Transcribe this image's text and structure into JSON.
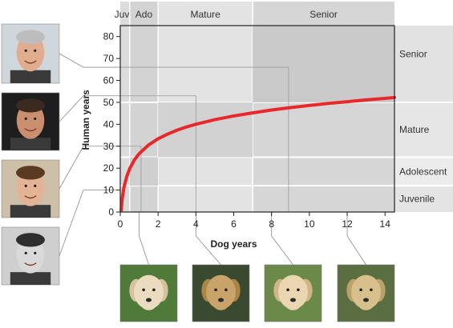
{
  "chart_data": {
    "type": "line",
    "xlabel": "Dog years",
    "ylabel": "Human years",
    "xlim": [
      0,
      14.5
    ],
    "ylim": [
      0,
      85
    ],
    "xticks": [
      0,
      2,
      4,
      6,
      8,
      10,
      12,
      14
    ],
    "yticks": [
      0,
      10,
      20,
      30,
      40,
      50,
      60,
      70,
      80
    ],
    "series": [
      {
        "color": "#e8282b",
        "x": [
          0.05,
          0.1,
          0.2,
          0.35,
          0.5,
          0.75,
          1,
          1.5,
          2,
          2.5,
          3,
          3.5,
          4,
          5,
          6,
          7,
          8,
          9,
          10,
          11,
          12,
          13,
          14,
          14.5
        ],
        "y": [
          0.9,
          6.0,
          11.5,
          16.4,
          19.8,
          23.8,
          26.6,
          30.6,
          33.4,
          35.5,
          37.3,
          38.8,
          40.0,
          42.1,
          43.8,
          45.2,
          46.5,
          47.6,
          48.6,
          49.5,
          50.3,
          51.1,
          51.8,
          52.2
        ]
      }
    ],
    "life_stages_dog": [
      {
        "label": "Juv",
        "from": 0,
        "to": 0.5
      },
      {
        "label": "Ado",
        "from": 0.5,
        "to": 2
      },
      {
        "label": "Mature",
        "from": 2,
        "to": 7
      },
      {
        "label": "Senior",
        "from": 7,
        "to": 14.5
      }
    ],
    "life_stages_human": [
      {
        "label": "Juvenile",
        "from": 0,
        "to": 12
      },
      {
        "label": "Adolescent",
        "from": 12,
        "to": 25
      },
      {
        "label": "Mature",
        "from": 25,
        "to": 50
      },
      {
        "label": "Senior",
        "from": 50,
        "to": 85
      }
    ],
    "highlighted_points": [
      {
        "x": 1.1,
        "y": 30
      },
      {
        "x": 4,
        "y": 53
      },
      {
        "x": 8.9,
        "y": 66
      }
    ],
    "human_photo_ages": [
      66,
      53,
      30,
      10
    ],
    "dog_photo_ages": [
      1,
      4,
      8,
      12
    ],
    "grid": false,
    "legend": "none"
  }
}
